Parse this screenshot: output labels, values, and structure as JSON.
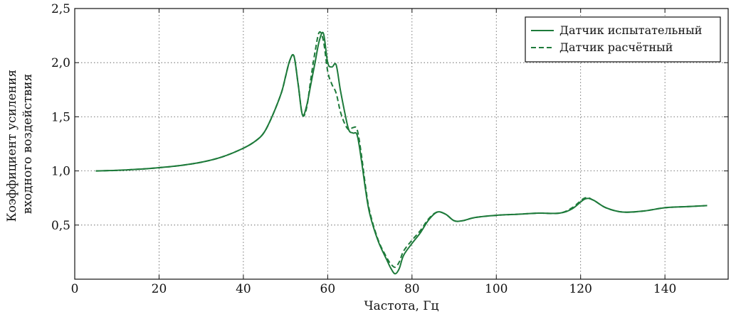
{
  "chart_data": {
    "type": "line",
    "xlabel": "Частота, Гц",
    "ylabel_lines": [
      "Коэффициент усиления",
      "входного воздействия"
    ],
    "xlim": [
      0,
      155
    ],
    "ylim": [
      0,
      2.5
    ],
    "x_ticks": [
      0,
      20,
      40,
      60,
      80,
      100,
      120,
      140
    ],
    "x_tick_labels": [
      "0",
      "20",
      "40",
      "60",
      "80",
      "100",
      "120",
      "140"
    ],
    "y_ticks": [
      0.5,
      1.0,
      1.5,
      2.0,
      2.5
    ],
    "y_tick_labels": [
      "0,5",
      "1,0",
      "1,5",
      "2,0",
      "2,5"
    ],
    "grid": true,
    "legend_position": "top-right",
    "color": "#1d7a3a",
    "series": [
      {
        "name": "Датчик испытательный",
        "style": "solid",
        "points": [
          [
            5,
            1.0
          ],
          [
            10,
            1.005
          ],
          [
            15,
            1.015
          ],
          [
            20,
            1.03
          ],
          [
            25,
            1.05
          ],
          [
            30,
            1.08
          ],
          [
            35,
            1.13
          ],
          [
            40,
            1.21
          ],
          [
            43,
            1.28
          ],
          [
            45,
            1.36
          ],
          [
            47,
            1.52
          ],
          [
            49,
            1.72
          ],
          [
            50,
            1.87
          ],
          [
            51,
            2.02
          ],
          [
            52,
            2.06
          ],
          [
            53,
            1.8
          ],
          [
            54,
            1.52
          ],
          [
            55,
            1.6
          ],
          [
            56,
            1.8
          ],
          [
            57,
            2.0
          ],
          [
            58,
            2.2
          ],
          [
            59,
            2.27
          ],
          [
            60,
            2.0
          ],
          [
            61,
            1.96
          ],
          [
            62,
            1.98
          ],
          [
            63,
            1.75
          ],
          [
            64,
            1.55
          ],
          [
            65,
            1.38
          ],
          [
            66,
            1.35
          ],
          [
            67,
            1.33
          ],
          [
            68,
            1.1
          ],
          [
            69,
            0.82
          ],
          [
            70,
            0.6
          ],
          [
            72,
            0.35
          ],
          [
            74,
            0.18
          ],
          [
            75,
            0.1
          ],
          [
            76,
            0.05
          ],
          [
            77,
            0.1
          ],
          [
            78,
            0.22
          ],
          [
            80,
            0.33
          ],
          [
            82,
            0.43
          ],
          [
            84,
            0.55
          ],
          [
            86,
            0.62
          ],
          [
            88,
            0.6
          ],
          [
            90,
            0.54
          ],
          [
            92,
            0.54
          ],
          [
            95,
            0.57
          ],
          [
            100,
            0.59
          ],
          [
            105,
            0.6
          ],
          [
            110,
            0.61
          ],
          [
            115,
            0.61
          ],
          [
            118,
            0.65
          ],
          [
            121,
            0.74
          ],
          [
            123,
            0.73
          ],
          [
            126,
            0.66
          ],
          [
            130,
            0.62
          ],
          [
            135,
            0.63
          ],
          [
            140,
            0.66
          ],
          [
            145,
            0.67
          ],
          [
            150,
            0.68
          ]
        ]
      },
      {
        "name": "Датчик расчётный",
        "style": "dashed",
        "points": [
          [
            5,
            1.0
          ],
          [
            10,
            1.005
          ],
          [
            15,
            1.015
          ],
          [
            20,
            1.03
          ],
          [
            25,
            1.05
          ],
          [
            30,
            1.08
          ],
          [
            35,
            1.13
          ],
          [
            40,
            1.21
          ],
          [
            43,
            1.28
          ],
          [
            45,
            1.36
          ],
          [
            47,
            1.52
          ],
          [
            49,
            1.72
          ],
          [
            50,
            1.87
          ],
          [
            51,
            2.02
          ],
          [
            52,
            2.06
          ],
          [
            53,
            1.8
          ],
          [
            54,
            1.52
          ],
          [
            55,
            1.58
          ],
          [
            56,
            1.85
          ],
          [
            57,
            2.1
          ],
          [
            58,
            2.28
          ],
          [
            59,
            2.2
          ],
          [
            60,
            1.92
          ],
          [
            61,
            1.8
          ],
          [
            62,
            1.72
          ],
          [
            63,
            1.55
          ],
          [
            64,
            1.44
          ],
          [
            65,
            1.38
          ],
          [
            66,
            1.4
          ],
          [
            67,
            1.38
          ],
          [
            68,
            1.15
          ],
          [
            69,
            0.85
          ],
          [
            70,
            0.62
          ],
          [
            72,
            0.36
          ],
          [
            74,
            0.2
          ],
          [
            75,
            0.14
          ],
          [
            76,
            0.11
          ],
          [
            77,
            0.16
          ],
          [
            78,
            0.26
          ],
          [
            80,
            0.36
          ],
          [
            82,
            0.45
          ],
          [
            84,
            0.56
          ],
          [
            86,
            0.62
          ],
          [
            88,
            0.6
          ],
          [
            90,
            0.54
          ],
          [
            92,
            0.54
          ],
          [
            95,
            0.57
          ],
          [
            100,
            0.59
          ],
          [
            105,
            0.6
          ],
          [
            110,
            0.61
          ],
          [
            115,
            0.61
          ],
          [
            118,
            0.66
          ],
          [
            121,
            0.75
          ],
          [
            123,
            0.73
          ],
          [
            126,
            0.66
          ],
          [
            130,
            0.62
          ],
          [
            135,
            0.63
          ],
          [
            140,
            0.66
          ],
          [
            145,
            0.67
          ],
          [
            150,
            0.68
          ]
        ]
      }
    ]
  }
}
